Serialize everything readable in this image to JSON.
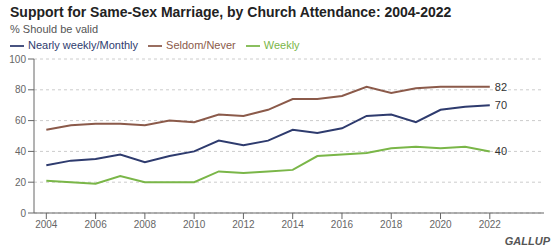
{
  "chart_data": {
    "type": "line",
    "title": "Support for Same-Sex Marriage, by Church Attendance: 2004-2022",
    "subtitle": "% Should be valid",
    "x": [
      2004,
      2005,
      2006,
      2007,
      2008,
      2009,
      2010,
      2011,
      2012,
      2013,
      2014,
      2015,
      2016,
      2017,
      2018,
      2019,
      2020,
      2021,
      2022
    ],
    "series": [
      {
        "name": "Weekly",
        "color": "#7ab648",
        "values": [
          21,
          20,
          19,
          24,
          20,
          20,
          20,
          27,
          26,
          27,
          28,
          37,
          38,
          39,
          42,
          43,
          42,
          43,
          40
        ]
      },
      {
        "name": "Nearly weekly/Monthly",
        "color": "#2e3b6e",
        "values": [
          31,
          34,
          35,
          38,
          33,
          37,
          40,
          47,
          44,
          47,
          54,
          52,
          55,
          63,
          64,
          59,
          67,
          69,
          70
        ]
      },
      {
        "name": "Seldom/Never",
        "color": "#8b5a4a",
        "values": [
          54,
          57,
          58,
          58,
          57,
          60,
          59,
          64,
          63,
          67,
          74,
          74,
          76,
          82,
          78,
          81,
          82,
          82,
          82
        ]
      }
    ],
    "xlim": [
      2003.5,
      2024.2
    ],
    "xticks": [
      2004,
      2006,
      2008,
      2010,
      2012,
      2014,
      2016,
      2018,
      2020,
      2022
    ],
    "ylim": [
      0,
      100
    ],
    "yticks": [
      0,
      20,
      40,
      60,
      80,
      100
    ],
    "grid": true,
    "legend": "top",
    "annotations": [
      {
        "text": "40",
        "x": 2022,
        "y": 40
      },
      {
        "text": "70",
        "x": 2022,
        "y": 70
      },
      {
        "text": "82",
        "x": 2022,
        "y": 82
      },
      {
        "text": "GALLUP"
      }
    ]
  }
}
